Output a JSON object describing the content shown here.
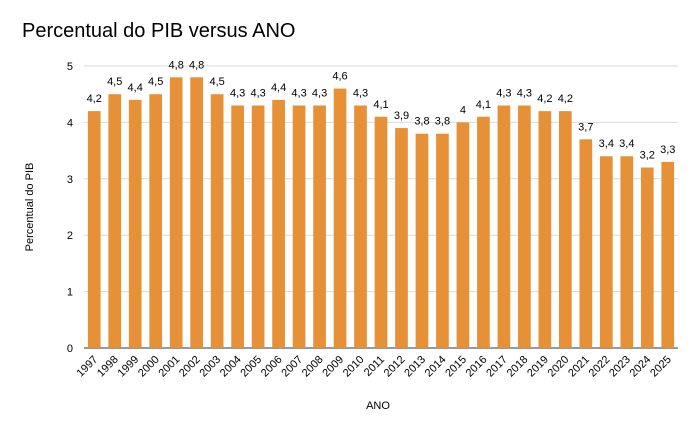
{
  "chart_data": {
    "type": "bar",
    "title": "Percentual do PIB versus ANO",
    "xlabel": "ANO",
    "ylabel": "Percentual do PIB",
    "ylim": [
      0,
      5
    ],
    "yticks": [
      0,
      1,
      2,
      3,
      4,
      5
    ],
    "grid": true,
    "legend": "none",
    "color": "#e69138",
    "categories": [
      "1997",
      "1998",
      "1999",
      "2000",
      "2001",
      "2002",
      "2003",
      "2004",
      "2005",
      "2006",
      "2007",
      "2008",
      "2009",
      "2010",
      "2011",
      "2012",
      "2013",
      "2014",
      "2015",
      "2016",
      "2017",
      "2018",
      "2019",
      "2020",
      "2021",
      "2022",
      "2023",
      "2024",
      "2025"
    ],
    "values": [
      4.2,
      4.5,
      4.4,
      4.5,
      4.8,
      4.8,
      4.5,
      4.3,
      4.3,
      4.4,
      4.3,
      4.3,
      4.6,
      4.3,
      4.1,
      3.9,
      3.8,
      3.8,
      4,
      4.1,
      4.3,
      4.3,
      4.2,
      4.2,
      3.7,
      3.4,
      3.4,
      3.2,
      3.3
    ],
    "data_labels": [
      "4,2",
      "4,5",
      "4,4",
      "4,5",
      "4,8",
      "4,8",
      "4,5",
      "4,3",
      "4,3",
      "4,4",
      "4,3",
      "4,3",
      "4,6",
      "4,3",
      "4,1",
      "3,9",
      "3,8",
      "3,8",
      "4",
      "4,1",
      "4,3",
      "4,3",
      "4,2",
      "4,2",
      "3,7",
      "3,4",
      "3,4",
      "3,2",
      "3,3"
    ]
  }
}
